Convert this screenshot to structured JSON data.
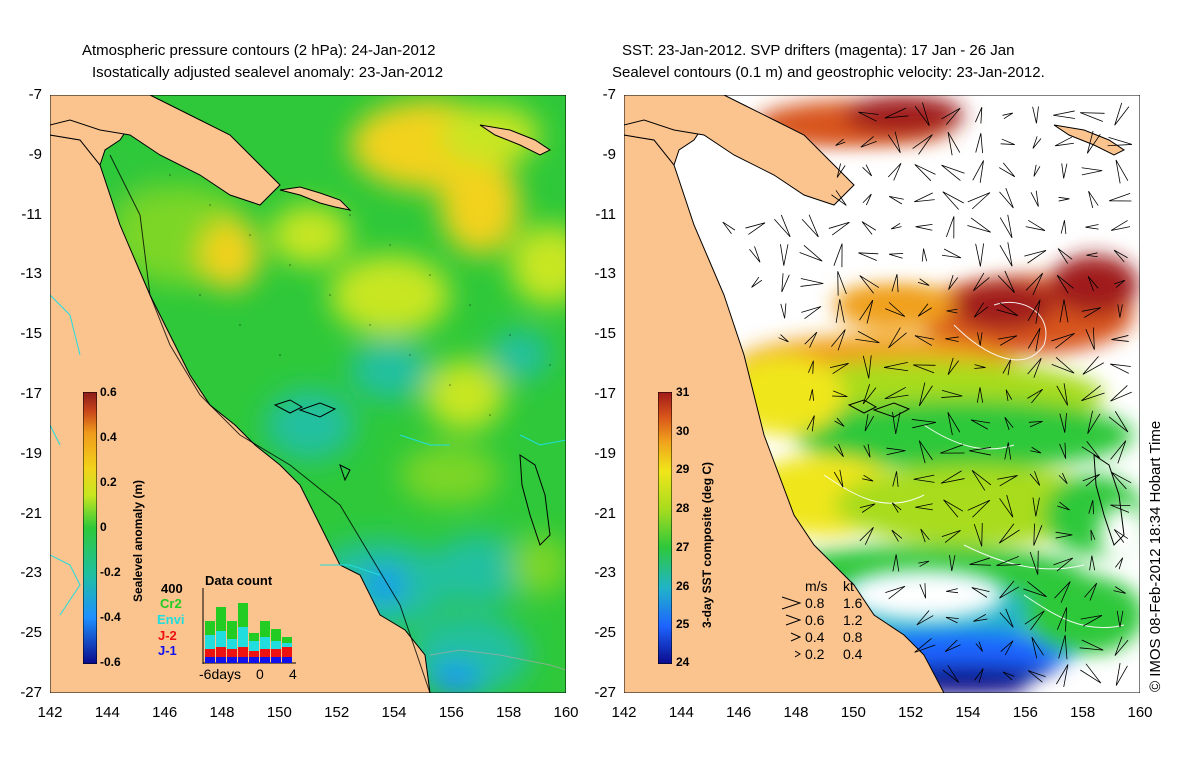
{
  "left_panel": {
    "title_line1": "Atmospheric pressure contours (2 hPa): 24-Jan-2012",
    "title_line2": "Isostatically adjusted sealevel anomaly: 23-Jan-2012",
    "colorbar": {
      "label": "Sealevel anomaly (m)",
      "ticks": [
        "0.6",
        "0.4",
        "0.2",
        "0",
        "-0.2",
        "-0.4",
        "-0.6"
      ]
    },
    "data_count": {
      "title": "Data count",
      "ymax_label": "400",
      "legend": [
        {
          "label": "Cr2",
          "color": "#22cc22"
        },
        {
          "label": "Envi",
          "color": "#22dddd"
        },
        {
          "label": "J-2",
          "color": "#ee1111"
        },
        {
          "label": "J-1",
          "color": "#1111ee"
        }
      ],
      "x_labels": [
        "-6days",
        "0",
        "4"
      ]
    }
  },
  "right_panel": {
    "title_line1": "SST: 23-Jan-2012. SVP drifters (magenta): 17 Jan - 26 Jan",
    "title_line2": "Sealevel contours (0.1 m) and geostrophic velocity: 23-Jan-2012.",
    "colorbar": {
      "label": "3-day SST composite (deg C)",
      "ticks": [
        "31",
        "30",
        "29",
        "28",
        "27",
        "26",
        "25",
        "24"
      ]
    },
    "velocity_key": {
      "header_ms": "m/s",
      "header_kt": "kt",
      "rows": [
        {
          "ms": "0.8",
          "kt": "1.6"
        },
        {
          "ms": "0.6",
          "kt": "1.2"
        },
        {
          "ms": "0.4",
          "kt": "0.8"
        },
        {
          "ms": "0.2",
          "kt": "0.4"
        }
      ]
    }
  },
  "axes": {
    "lat_ticks": [
      "-7",
      "-9",
      "-11",
      "-13",
      "-15",
      "-17",
      "-19",
      "-21",
      "-23",
      "-25",
      "-27"
    ],
    "lon_ticks": [
      "142",
      "144",
      "146",
      "148",
      "150",
      "152",
      "154",
      "156",
      "158",
      "160"
    ]
  },
  "credit": "© IMOS 08-Feb-2012 18:34 Hobart Time",
  "colors": {
    "land": "#fbc48f",
    "sla_scale": [
      "#0a0a8a",
      "#1e90ff",
      "#20c0a0",
      "#2ec83a",
      "#7cd626",
      "#c8e620",
      "#f2d21a",
      "#f09a1c",
      "#c8461a",
      "#8b1a1a"
    ],
    "sst_scale": [
      "#0a0a8a",
      "#1e64ff",
      "#20b4c8",
      "#2ec83a",
      "#a8dc1e",
      "#f0e61a",
      "#f0a01c",
      "#d8541a",
      "#a01a1a"
    ]
  }
}
